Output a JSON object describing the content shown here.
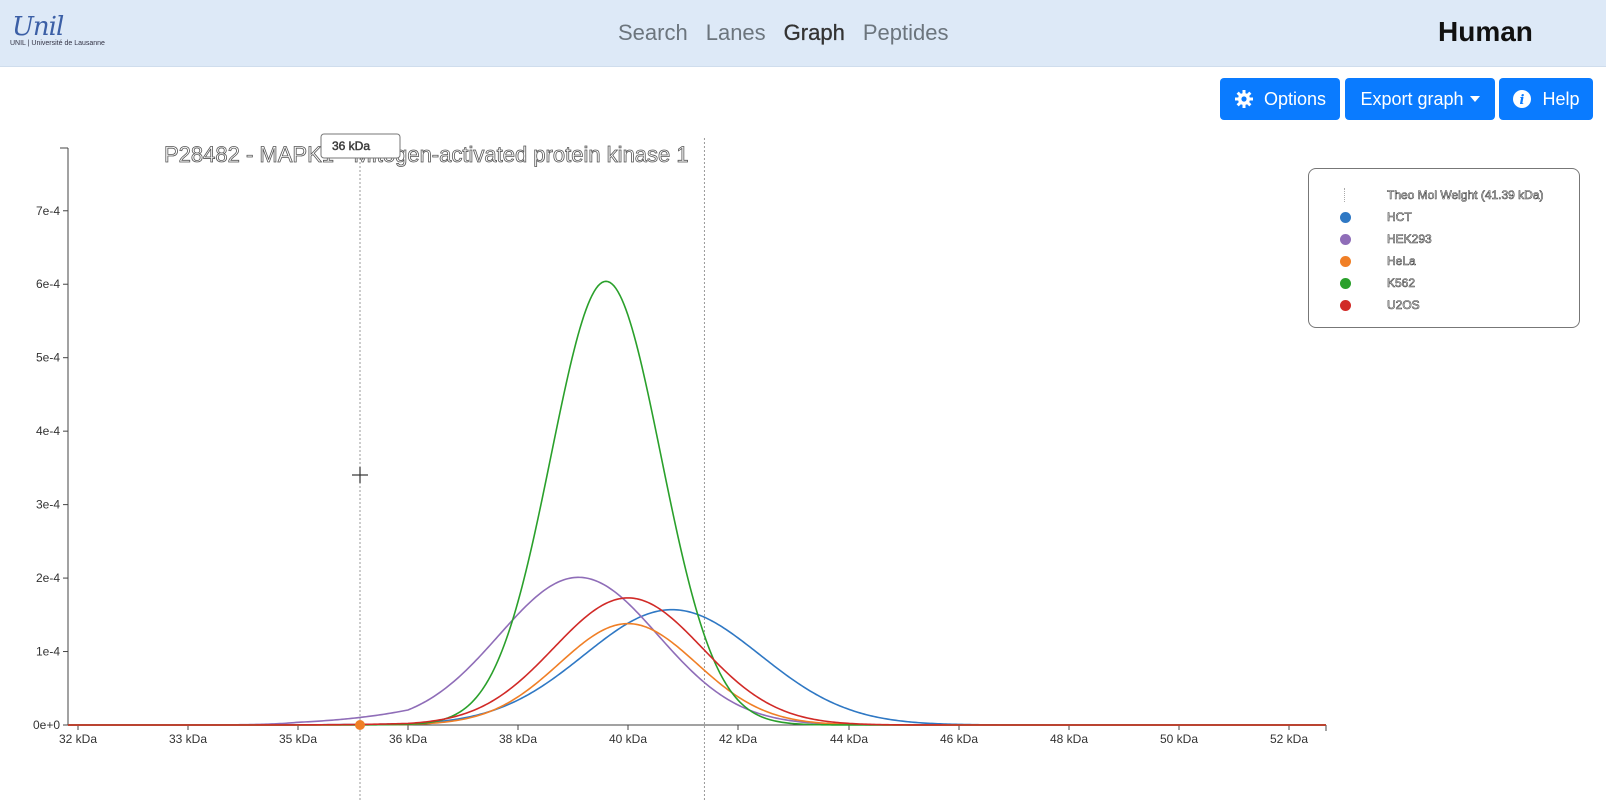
{
  "nav": {
    "logo_text": "Unil",
    "logo_sub": "UNIL | Université de Lausanne",
    "links": [
      "Search",
      "Lanes",
      "Graph",
      "Peptides"
    ],
    "species": "Human"
  },
  "toolbar": {
    "options_label": "Options",
    "export_label": "Export graph",
    "help_label": "Help"
  },
  "chart_data": {
    "type": "line",
    "title": "P28482 - MAPK1 - Mitogen-activated protein kinase 1",
    "x_ticks": [
      "32 kDa",
      "33 kDa",
      "35 kDa",
      "36 kDa",
      "38 kDa",
      "40 kDa",
      "42 kDa",
      "44 kDa",
      "46 kDa",
      "48 kDa",
      "50 kDa",
      "52 kDa"
    ],
    "y_ticks": [
      "0e+0",
      "1e-4",
      "2e-4",
      "3e-4",
      "4e-4",
      "5e-4",
      "6e-4",
      "7e-4"
    ],
    "ylim": [
      0,
      0.00078
    ],
    "cursor_label": "36 kDa",
    "theo_mol_weight_kda": 41.39,
    "legend_title": "Theo Mol Weight (41.39 kDa)",
    "series": [
      {
        "name": "HCT",
        "color": "#2f78c4",
        "peak_kda": 40.8,
        "peak": 0.000157,
        "width": 1.6
      },
      {
        "name": "HEK293",
        "color": "#8f6db8",
        "peak_kda": 39.1,
        "peak": 0.000201,
        "width": 1.45
      },
      {
        "name": "HeLa",
        "color": "#f07f26",
        "peak_kda": 40.0,
        "peak": 0.000138,
        "width": 1.25
      },
      {
        "name": "K562",
        "color": "#2aa02b",
        "peak_kda": 39.6,
        "peak": 0.000604,
        "width": 1.0
      },
      {
        "name": "U2OS",
        "color": "#d12a27",
        "peak_kda": 40.0,
        "peak": 0.000173,
        "width": 1.35
      }
    ]
  }
}
